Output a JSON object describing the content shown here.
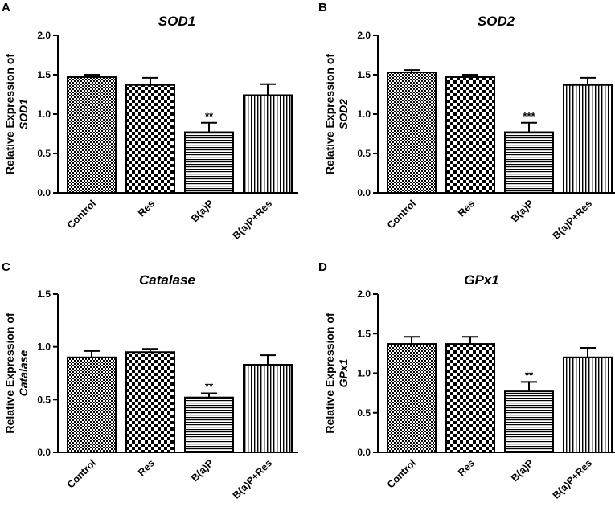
{
  "chart_data": [
    {
      "panel_label": "A",
      "type": "bar",
      "title": "SOD1",
      "ylabel_line1": "Relative Expression of",
      "ylabel_line2": "SOD1",
      "categories": [
        "Control",
        "Res",
        "B(a)P",
        "B(a)P+Res"
      ],
      "values": [
        1.47,
        1.37,
        0.77,
        1.24
      ],
      "errors": [
        0.03,
        0.09,
        0.12,
        0.14
      ],
      "significance": [
        "",
        "",
        "**",
        ""
      ],
      "patterns": [
        "checker",
        "checker-large",
        "horizontal",
        "vertical"
      ],
      "ylim": [
        0,
        2.0
      ],
      "yticks": [
        "0.0",
        "0.5",
        "1.0",
        "1.5",
        "2.0"
      ]
    },
    {
      "panel_label": "B",
      "type": "bar",
      "title": "SOD2",
      "ylabel_line1": "Relative Expression of",
      "ylabel_line2": "SOD2",
      "categories": [
        "Control",
        "Res",
        "B(a)P",
        "B(a)P+Res"
      ],
      "values": [
        1.53,
        1.47,
        0.77,
        1.37
      ],
      "errors": [
        0.03,
        0.03,
        0.12,
        0.09
      ],
      "significance": [
        "",
        "",
        "***",
        ""
      ],
      "patterns": [
        "checker",
        "checker-large",
        "horizontal",
        "vertical"
      ],
      "ylim": [
        0,
        2.0
      ],
      "yticks": [
        "0.0",
        "0.5",
        "1.0",
        "1.5",
        "2.0"
      ]
    },
    {
      "panel_label": "C",
      "type": "bar",
      "title": "Catalase",
      "ylabel_line1": "Relative Expression of",
      "ylabel_line2": "Catalase",
      "categories": [
        "Control",
        "Res",
        "B(a)P",
        "B(a)P+Res"
      ],
      "values": [
        0.9,
        0.95,
        0.52,
        0.83
      ],
      "errors": [
        0.06,
        0.03,
        0.04,
        0.09
      ],
      "significance": [
        "",
        "",
        "**",
        ""
      ],
      "patterns": [
        "checker",
        "checker-large",
        "horizontal",
        "vertical"
      ],
      "ylim": [
        0,
        1.5
      ],
      "yticks": [
        "0.0",
        "0.5",
        "1.0",
        "1.5"
      ]
    },
    {
      "panel_label": "D",
      "type": "bar",
      "title": "GPx1",
      "ylabel_line1": "Relative Expression of",
      "ylabel_line2": "GPx1",
      "categories": [
        "Control",
        "Res",
        "B(a)P",
        "B(a)P+Res"
      ],
      "values": [
        1.37,
        1.37,
        0.77,
        1.2
      ],
      "errors": [
        0.09,
        0.09,
        0.12,
        0.12
      ],
      "significance": [
        "",
        "",
        "**",
        ""
      ],
      "patterns": [
        "checker",
        "checker-large",
        "horizontal",
        "vertical"
      ],
      "ylim": [
        0,
        2.0
      ],
      "yticks": [
        "0.0",
        "0.5",
        "1.0",
        "1.5",
        "2.0"
      ]
    }
  ]
}
